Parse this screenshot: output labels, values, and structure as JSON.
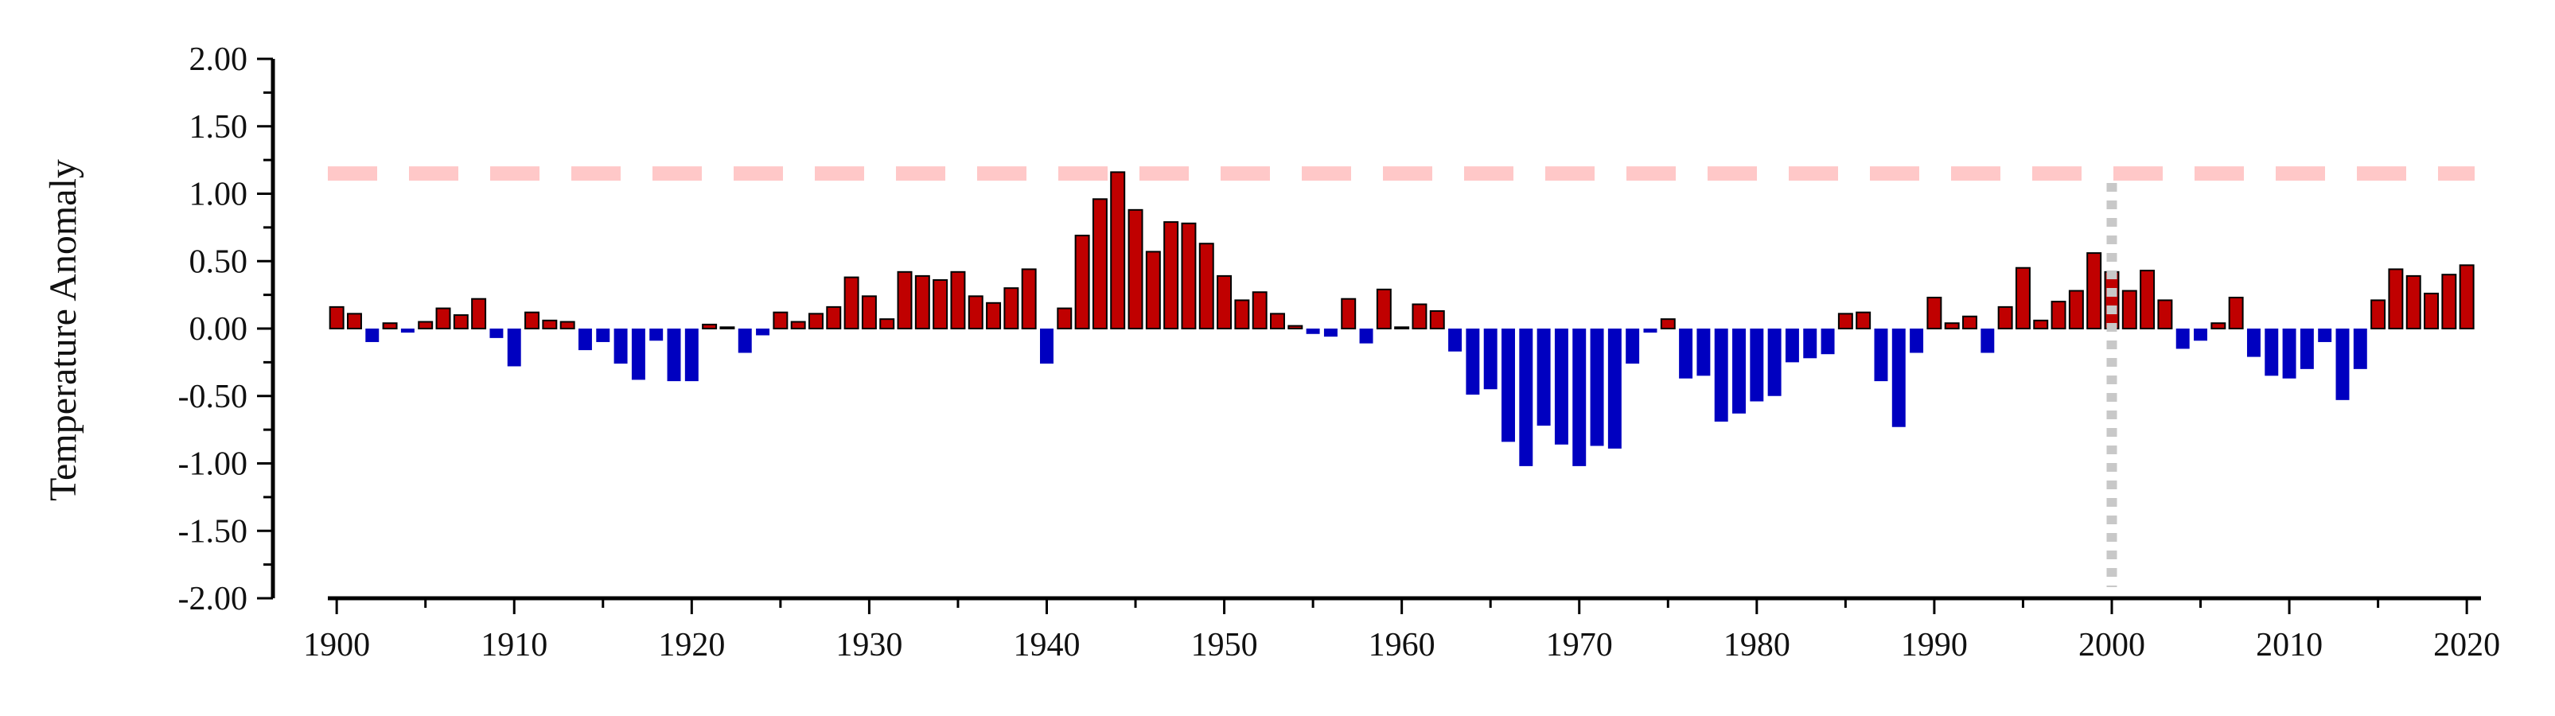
{
  "chart_data": {
    "type": "bar",
    "title": "",
    "xlabel": "",
    "ylabel": "Temperature Anomaly",
    "xlim": [
      1899.5,
      2020.8
    ],
    "ylim": [
      -2.0,
      2.0
    ],
    "x_ticks": [
      "1900",
      "1910",
      "1920",
      "1930",
      "1940",
      "1950",
      "1960",
      "1970",
      "1980",
      "1990",
      "2000",
      "2010",
      "2020"
    ],
    "y_ticks": [
      "2.00",
      "1.50",
      "1.00",
      "0.50",
      "0.00",
      "-0.50",
      "-1.00",
      "-1.50",
      "-2.00"
    ],
    "colors": {
      "positive": "#c00000",
      "negative": "#0000c0",
      "outline": "#000000",
      "threshold": "#ffc8c8",
      "marker": "#c8c8c8"
    },
    "threshold_line": {
      "y": 1.15,
      "style": "dashed"
    },
    "marker_line": {
      "x": 2000,
      "style": "dotted"
    },
    "grid": false,
    "legend": "none",
    "years": [
      1900,
      1901,
      1902,
      1903,
      1904,
      1905,
      1906,
      1907,
      1908,
      1909,
      1910,
      1911,
      1912,
      1913,
      1914,
      1915,
      1916,
      1917,
      1918,
      1919,
      1920,
      1921,
      1922,
      1923,
      1924,
      1925,
      1926,
      1927,
      1928,
      1929,
      1930,
      1931,
      1932,
      1933,
      1934,
      1935,
      1936,
      1937,
      1938,
      1939,
      1940,
      1941,
      1942,
      1943,
      1944,
      1945,
      1946,
      1947,
      1948,
      1949,
      1950,
      1951,
      1952,
      1953,
      1954,
      1955,
      1956,
      1957,
      1958,
      1959,
      1960,
      1961,
      1962,
      1963,
      1964,
      1965,
      1966,
      1967,
      1968,
      1969,
      1970,
      1971,
      1972,
      1973,
      1974,
      1975,
      1976,
      1977,
      1978,
      1979,
      1980,
      1981,
      1982,
      1983,
      1984,
      1985,
      1986,
      1987,
      1988,
      1989,
      1990,
      1991,
      1992,
      1993,
      1994,
      1995,
      1996,
      1997,
      1998,
      1999,
      2000,
      2001,
      2002,
      2003,
      2004,
      2005,
      2006,
      2007,
      2008,
      2009,
      2010,
      2011,
      2012,
      2013,
      2014,
      2015,
      2016,
      2017,
      2018,
      2019,
      2020
    ],
    "values": [
      0.16,
      0.11,
      -0.1,
      0.04,
      -0.03,
      0.05,
      0.15,
      0.1,
      0.22,
      -0.07,
      -0.28,
      0.12,
      0.06,
      0.05,
      -0.16,
      -0.1,
      -0.26,
      -0.38,
      -0.09,
      -0.39,
      -0.39,
      0.03,
      0.01,
      -0.18,
      -0.05,
      0.12,
      0.05,
      0.11,
      0.16,
      0.38,
      0.24,
      0.07,
      0.42,
      0.39,
      0.36,
      0.42,
      0.24,
      0.19,
      0.3,
      0.44,
      -0.26,
      0.15,
      0.69,
      0.96,
      1.16,
      0.88,
      0.57,
      0.79,
      0.78,
      0.63,
      0.39,
      0.21,
      0.27,
      0.11,
      0.02,
      -0.04,
      -0.06,
      0.22,
      -0.11,
      0.29,
      0.01,
      0.18,
      0.13,
      -0.17,
      -0.49,
      -0.45,
      -0.84,
      -1.02,
      -0.72,
      -0.86,
      -1.02,
      -0.87,
      -0.89,
      -0.26,
      -0.03,
      0.07,
      -0.37,
      -0.35,
      -0.69,
      -0.63,
      -0.54,
      -0.5,
      -0.25,
      -0.22,
      -0.19,
      0.11,
      0.12,
      -0.39,
      -0.73,
      -0.18,
      0.23,
      0.04,
      0.09,
      -0.18,
      0.16,
      0.45,
      0.06,
      0.2,
      0.28,
      0.56,
      0.42,
      0.28,
      0.43,
      0.21,
      -0.15,
      -0.09,
      0.04,
      0.23,
      -0.21,
      -0.35,
      -0.37,
      -0.3,
      -0.1,
      -0.53,
      -0.3,
      0.21,
      0.44,
      0.39,
      0.26,
      0.4,
      0.47
    ]
  }
}
